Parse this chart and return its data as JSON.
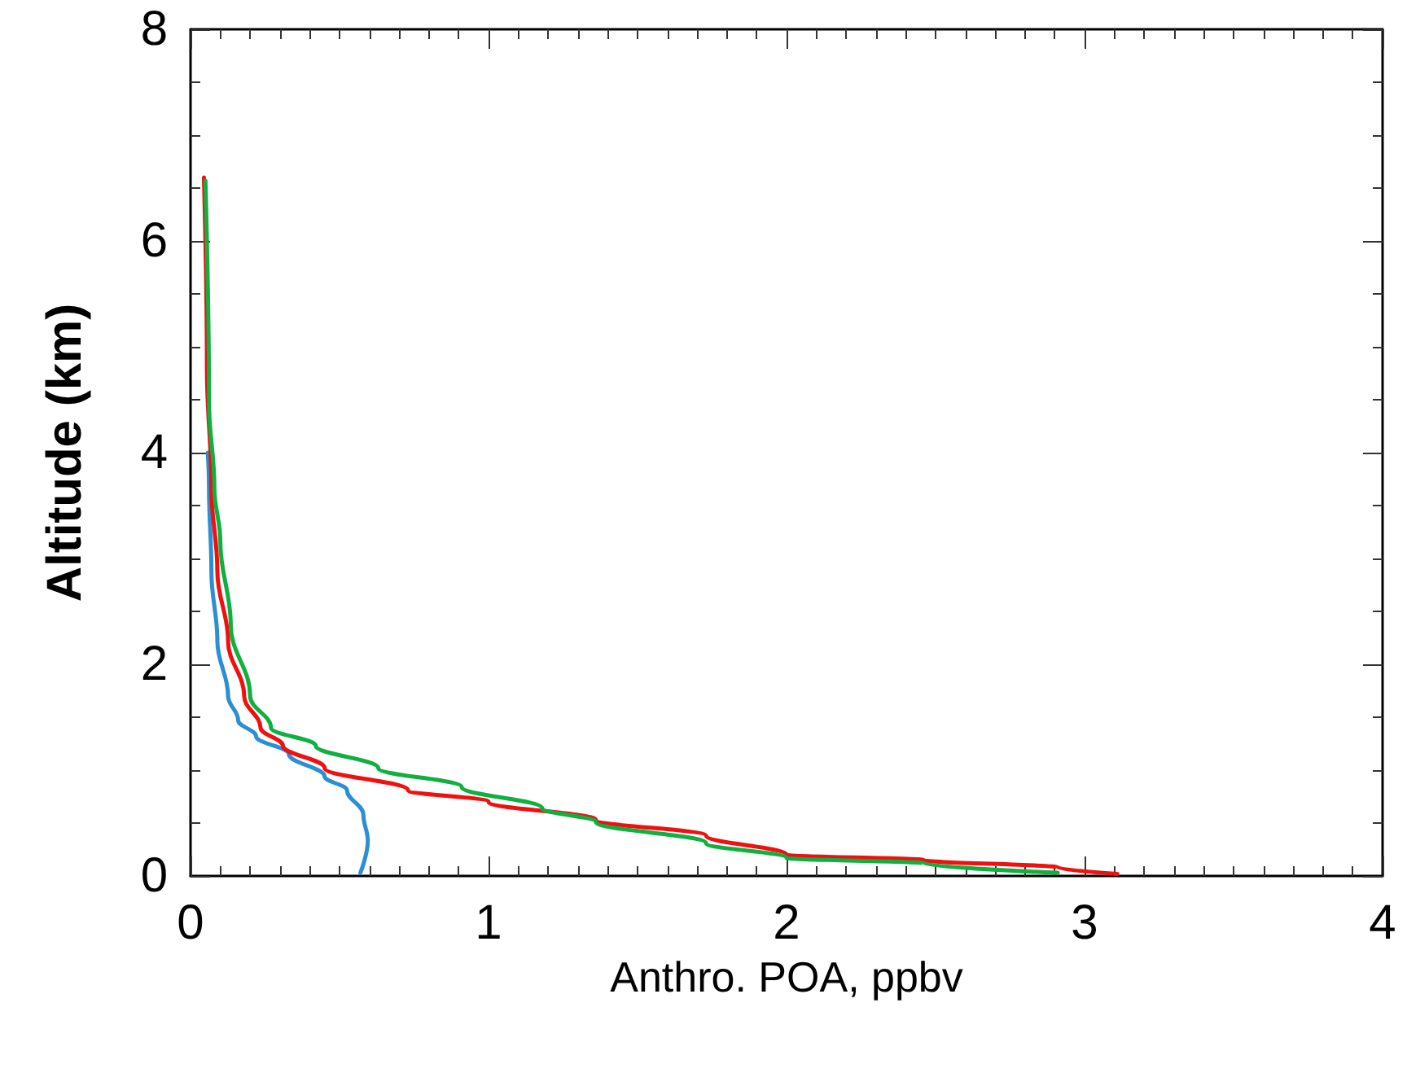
{
  "chart_data": {
    "type": "line",
    "xlabel": "Anthro. POA, ppbv",
    "ylabel": "Altitude (km)",
    "xlim": [
      0,
      4
    ],
    "ylim": [
      0,
      8
    ],
    "xticks": [
      0,
      1,
      2,
      3,
      4
    ],
    "yticks": [
      0,
      2,
      4,
      6,
      8
    ],
    "grid": false,
    "marker": "none",
    "line_style": "solid",
    "series": [
      {
        "color": "#2a8fd4",
        "x": [
          0.57,
          0.595,
          0.58,
          0.525,
          0.45,
          0.33,
          0.22,
          0.16,
          0.126,
          0.09,
          0.07,
          0.062,
          0.058
        ],
        "values": [
          0.03,
          0.33,
          0.58,
          0.81,
          0.94,
          1.15,
          1.32,
          1.47,
          1.7,
          2.22,
          2.88,
          3.67,
          4.0
        ]
      },
      {
        "color": "#f01010",
        "x": [
          3.11,
          2.91,
          2.46,
          2.0,
          1.73,
          1.36,
          1.0,
          0.73,
          0.45,
          0.31,
          0.235,
          0.18,
          0.126,
          0.09,
          0.07,
          0.055,
          0.045
        ],
        "values": [
          0.02,
          0.08,
          0.15,
          0.2,
          0.38,
          0.53,
          0.7,
          0.81,
          1.02,
          1.23,
          1.4,
          1.7,
          2.22,
          2.88,
          3.67,
          4.8,
          6.6
        ]
      },
      {
        "color": "#10b040",
        "x": [
          2.91,
          2.46,
          2.0,
          1.73,
          1.36,
          1.18,
          0.91,
          0.63,
          0.42,
          0.27,
          0.2,
          0.135,
          0.1,
          0.08,
          0.062,
          0.05
        ],
        "values": [
          0.03,
          0.12,
          0.17,
          0.31,
          0.51,
          0.64,
          0.84,
          1.02,
          1.23,
          1.4,
          1.7,
          2.37,
          3.16,
          3.67,
          4.48,
          6.57
        ]
      }
    ]
  }
}
